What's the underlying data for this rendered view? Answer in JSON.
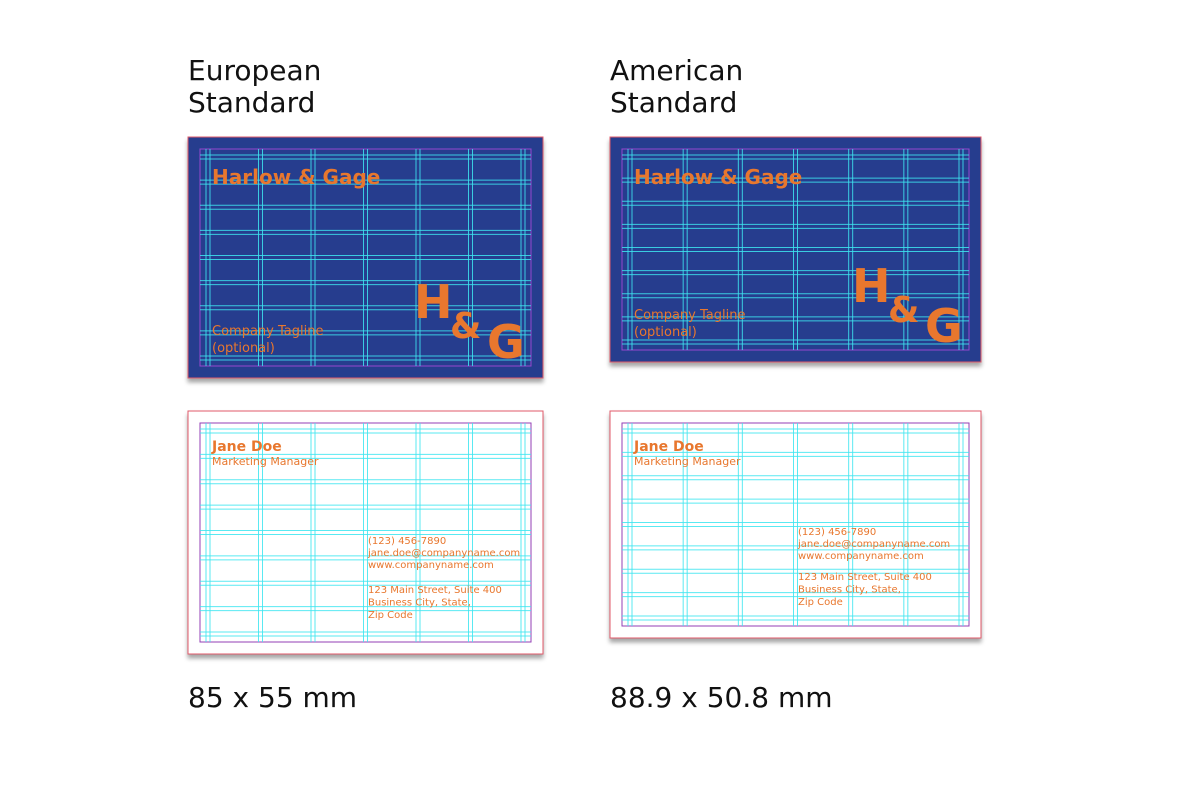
{
  "cards": [
    {
      "heading": [
        "European",
        "Standard"
      ],
      "front": {
        "company": "Harlow & Gage",
        "monogram": [
          "H",
          "&",
          "G"
        ],
        "tagline": [
          "Company Tagline",
          "(optional)"
        ]
      },
      "back": {
        "name": "Jane Doe",
        "title": "Marketing Manager",
        "contact": [
          "(123) 456-7890",
          "jane.doe@companyname.com",
          "www.companyname.com"
        ],
        "address": [
          "123 Main Street, Suite 400",
          "Business City, State,",
          "Zip Code"
        ]
      },
      "size": "85 x 55 mm"
    },
    {
      "heading": [
        "American",
        "Standard"
      ],
      "front": {
        "company": "Harlow & Gage",
        "monogram": [
          "H",
          "&",
          "G"
        ],
        "tagline": [
          "Company Tagline",
          "(optional)"
        ]
      },
      "back": {
        "name": "Jane Doe",
        "title": "Marketing Manager",
        "contact": [
          "(123) 456-7890",
          "jane.doe@companyname.com",
          "www.companyname.com"
        ],
        "address": [
          "123 Main Street, Suite 400",
          "Business City, State,",
          "Zip Code"
        ]
      },
      "size": "88.9 x 50.8 mm"
    }
  ]
}
